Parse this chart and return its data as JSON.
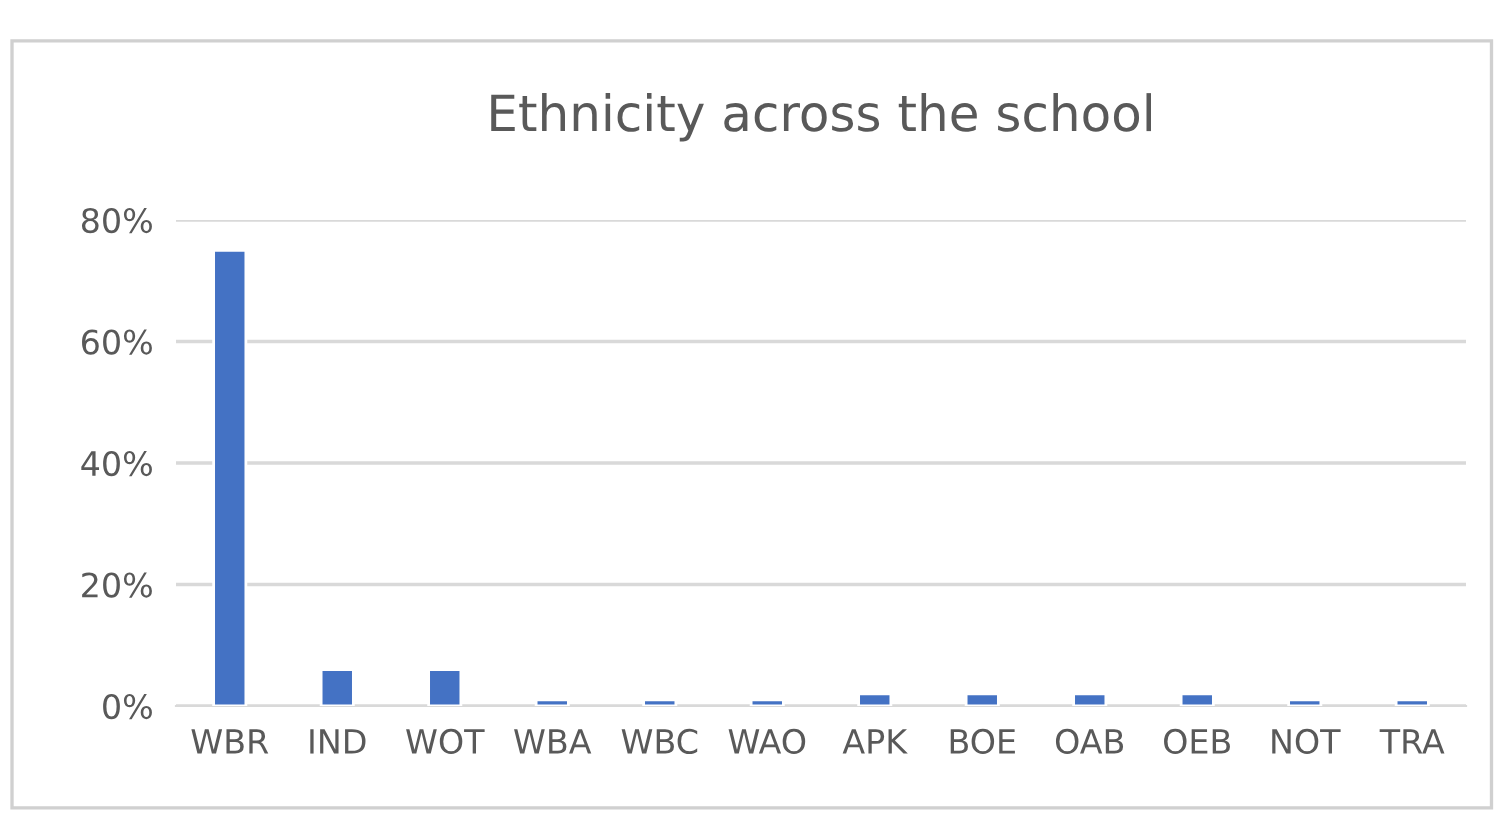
{
  "chart_data": {
    "type": "bar",
    "title": "Ethnicity across the school",
    "categories": [
      "WBR",
      "IND",
      "WOT",
      "WBA",
      "WBC",
      "WAO",
      "APK",
      "BOE",
      "OAB",
      "OEB",
      "NOT",
      "TRA"
    ],
    "values": [
      75,
      6,
      6,
      1,
      1,
      1,
      2,
      2,
      2,
      2,
      1,
      1
    ],
    "color": "#4472c4",
    "ylim": [
      0,
      80
    ],
    "yticks": [
      {
        "value": 0,
        "label": "0%"
      },
      {
        "value": 20,
        "label": "20%"
      },
      {
        "value": 40,
        "label": "40%"
      },
      {
        "value": 60,
        "label": "60%"
      },
      {
        "value": 80,
        "label": "80%"
      }
    ],
    "grid": "y",
    "legend": false
  }
}
